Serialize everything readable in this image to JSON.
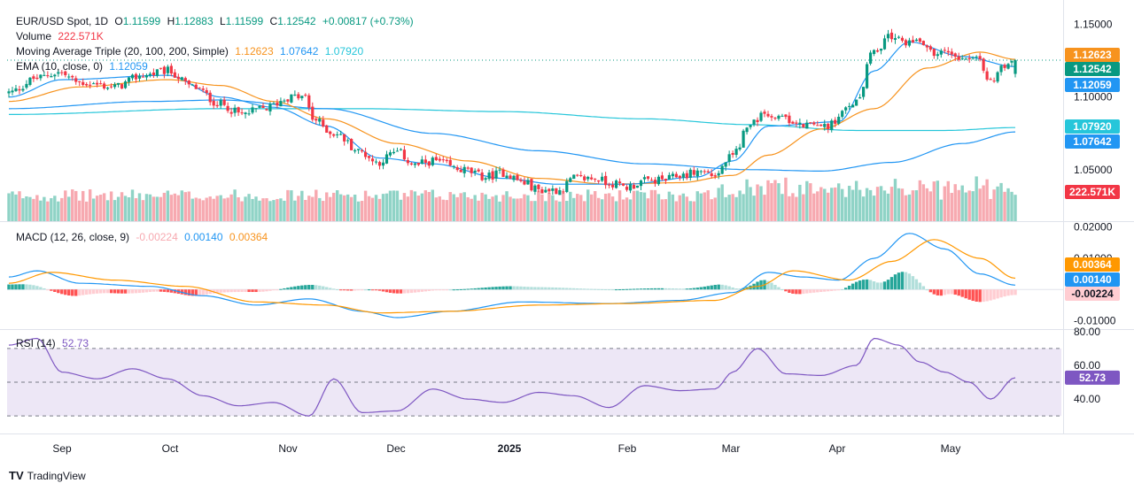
{
  "legend": {
    "symbol": "EUR/USD Spot, 1D",
    "o_label": "O",
    "o": "1.11599",
    "h_label": "H",
    "h": "1.12883",
    "l_label": "L",
    "l": "1.11599",
    "c_label": "C",
    "c": "1.12542",
    "change": "+0.00817 (+0.73%)",
    "volume_label": "Volume",
    "volume": "222.571K",
    "ma_label": "Moving Average Triple (20, 100, 200, Simple)",
    "ma20": "1.12623",
    "ma100": "1.07642",
    "ma200": "1.07920",
    "ema_label": "EMA (10, close, 0)",
    "ema": "1.12059",
    "macd_label": "MACD (12, 26, close, 9)",
    "macd_hist": "-0.00224",
    "macd_line": "0.00140",
    "macd_signal": "0.00364",
    "rsi_label": "RSI (14)",
    "rsi": "52.73"
  },
  "footer": {
    "brand": "TradingView"
  },
  "colors": {
    "up": "#089981",
    "down": "#f23645",
    "vol_up": "#8fd3c6",
    "vol_down": "#f7a9b0",
    "ma20": "#f7931e",
    "ma100": "#2196f3",
    "ma200": "#26c6da",
    "ema": "#2196f3",
    "macd": "#2196f3",
    "signal": "#ff9800",
    "rsi": "#7e57c2",
    "rsi_band": "#ede7f6"
  },
  "chart_data": [
    {
      "type": "candlestick",
      "title": "EUR/USD Spot, 1D",
      "x_ticks": [
        "Sep",
        "Oct",
        "Nov",
        "Dec",
        "2025",
        "Feb",
        "Mar",
        "Apr",
        "May"
      ],
      "y_ticks": [
        "1.05000",
        "1.10000",
        "1.15000"
      ],
      "ylim": [
        1.0145,
        1.1608
      ],
      "price_labels": [
        {
          "value": "1.12623",
          "y": 1.12623,
          "color": "#f7931e"
        },
        {
          "value": "1.12542",
          "y": 1.12542,
          "color": "#089981"
        },
        {
          "value": "1.12059",
          "y": 1.12059,
          "color": "#2196f3"
        },
        {
          "value": "1.07920",
          "y": 1.0792,
          "color": "#26c6da"
        },
        {
          "value": "1.07642",
          "y": 1.07642,
          "color": "#2196f3"
        },
        {
          "value": "222.571K",
          "y": 1.021,
          "color": "#f23645"
        }
      ],
      "price_anchors": [
        [
          0,
          1.103
        ],
        [
          8,
          1.113
        ],
        [
          14,
          1.117
        ],
        [
          20,
          1.11
        ],
        [
          30,
          1.107
        ],
        [
          38,
          1.115
        ],
        [
          45,
          1.118
        ],
        [
          52,
          1.107
        ],
        [
          60,
          1.095
        ],
        [
          66,
          1.088
        ],
        [
          72,
          1.092
        ],
        [
          80,
          1.1
        ],
        [
          84,
          1.1
        ],
        [
          86,
          1.085
        ],
        [
          92,
          1.075
        ],
        [
          100,
          1.062
        ],
        [
          104,
          1.055
        ],
        [
          110,
          1.062
        ],
        [
          115,
          1.053
        ],
        [
          120,
          1.056
        ],
        [
          128,
          1.05
        ],
        [
          135,
          1.045
        ],
        [
          140,
          1.048
        ],
        [
          146,
          1.041
        ],
        [
          150,
          1.036
        ],
        [
          156,
          1.036
        ],
        [
          160,
          1.044
        ],
        [
          166,
          1.044
        ],
        [
          170,
          1.041
        ],
        [
          175,
          1.038
        ],
        [
          180,
          1.042
        ],
        [
          186,
          1.043
        ],
        [
          190,
          1.046
        ],
        [
          196,
          1.049
        ],
        [
          200,
          1.046
        ],
        [
          205,
          1.06
        ],
        [
          210,
          1.082
        ],
        [
          215,
          1.089
        ],
        [
          222,
          1.083
        ],
        [
          228,
          1.08
        ],
        [
          233,
          1.081
        ],
        [
          236,
          1.089
        ],
        [
          240,
          1.098
        ],
        [
          245,
          1.132
        ],
        [
          250,
          1.142
        ],
        [
          254,
          1.138
        ],
        [
          258,
          1.14
        ],
        [
          262,
          1.13
        ],
        [
          266,
          1.131
        ],
        [
          270,
          1.128
        ],
        [
          274,
          1.127
        ],
        [
          278,
          1.11
        ],
        [
          282,
          1.123
        ],
        [
          285,
          1.125
        ]
      ],
      "ma20_anchors": [
        [
          0,
          1.097
        ],
        [
          20,
          1.107
        ],
        [
          45,
          1.112
        ],
        [
          60,
          1.108
        ],
        [
          75,
          1.097
        ],
        [
          90,
          1.085
        ],
        [
          110,
          1.068
        ],
        [
          130,
          1.056
        ],
        [
          150,
          1.044
        ],
        [
          170,
          1.04
        ],
        [
          190,
          1.041
        ],
        [
          205,
          1.046
        ],
        [
          215,
          1.06
        ],
        [
          230,
          1.078
        ],
        [
          245,
          1.092
        ],
        [
          260,
          1.12
        ],
        [
          275,
          1.131
        ],
        [
          285,
          1.126
        ]
      ],
      "ema_anchors": [
        [
          0,
          1.1
        ],
        [
          15,
          1.112
        ],
        [
          45,
          1.115
        ],
        [
          60,
          1.1
        ],
        [
          75,
          1.093
        ],
        [
          90,
          1.08
        ],
        [
          105,
          1.058
        ],
        [
          120,
          1.054
        ],
        [
          140,
          1.044
        ],
        [
          155,
          1.04
        ],
        [
          175,
          1.04
        ],
        [
          195,
          1.045
        ],
        [
          205,
          1.056
        ],
        [
          215,
          1.08
        ],
        [
          235,
          1.083
        ],
        [
          245,
          1.118
        ],
        [
          255,
          1.138
        ],
        [
          270,
          1.128
        ],
        [
          285,
          1.121
        ]
      ],
      "ma100_anchors": [
        [
          0,
          1.092
        ],
        [
          40,
          1.097
        ],
        [
          60,
          1.098
        ],
        [
          90,
          1.092
        ],
        [
          120,
          1.075
        ],
        [
          150,
          1.063
        ],
        [
          180,
          1.054
        ],
        [
          210,
          1.05
        ],
        [
          230,
          1.049
        ],
        [
          250,
          1.055
        ],
        [
          270,
          1.068
        ],
        [
          285,
          1.076
        ]
      ],
      "ma200_anchors": [
        [
          0,
          1.088
        ],
        [
          60,
          1.092
        ],
        [
          100,
          1.092
        ],
        [
          140,
          1.09
        ],
        [
          180,
          1.085
        ],
        [
          210,
          1.081
        ],
        [
          240,
          1.077
        ],
        [
          265,
          1.077
        ],
        [
          285,
          1.079
        ]
      ]
    },
    {
      "type": "histogram",
      "title": "Volume",
      "note": "volume bars overlaid at bottom of price pane"
    },
    {
      "type": "line",
      "title": "MACD (12, 26, close, 9)",
      "y_ticks": [
        "0.02000",
        "0.01000",
        "-0.01000"
      ],
      "ylim": [
        -0.0127,
        0.0219
      ],
      "series": [
        {
          "name": "MACD",
          "anchors": [
            [
              0,
              0.004
            ],
            [
              8,
              0.006
            ],
            [
              20,
              0.002
            ],
            [
              40,
              0.001
            ],
            [
              55,
              -0.002
            ],
            [
              70,
              -0.005
            ],
            [
              85,
              -0.003
            ],
            [
              100,
              -0.007
            ],
            [
              110,
              -0.009
            ],
            [
              125,
              -0.007
            ],
            [
              145,
              -0.004
            ],
            [
              170,
              -0.0045
            ],
            [
              190,
              -0.0035
            ],
            [
              205,
              -0.001
            ],
            [
              215,
              0.0055
            ],
            [
              225,
              0.004
            ],
            [
              235,
              0.003
            ],
            [
              245,
              0.01
            ],
            [
              255,
              0.018
            ],
            [
              265,
              0.013
            ],
            [
              275,
              0.005
            ],
            [
              285,
              0.0014
            ]
          ]
        },
        {
          "name": "Signal",
          "anchors": [
            [
              0,
              0.002
            ],
            [
              12,
              0.0055
            ],
            [
              30,
              0.003
            ],
            [
              50,
              0.001
            ],
            [
              70,
              -0.004
            ],
            [
              90,
              -0.005
            ],
            [
              105,
              -0.0075
            ],
            [
              125,
              -0.007
            ],
            [
              150,
              -0.005
            ],
            [
              175,
              -0.0045
            ],
            [
              200,
              -0.0035
            ],
            [
              212,
              0.001
            ],
            [
              222,
              0.006
            ],
            [
              238,
              0.003
            ],
            [
              250,
              0.009
            ],
            [
              262,
              0.016
            ],
            [
              275,
              0.01
            ],
            [
              285,
              0.0036
            ]
          ]
        }
      ]
    },
    {
      "type": "line",
      "title": "RSI (14)",
      "y_ticks": [
        "80.00",
        "60.00",
        "40.00"
      ],
      "ylim": [
        19.6,
        81.5
      ],
      "bands": [
        30,
        50,
        70
      ],
      "series": [
        {
          "name": "RSI",
          "anchors": [
            [
              0,
              72
            ],
            [
              8,
              76
            ],
            [
              15,
              56
            ],
            [
              25,
              52
            ],
            [
              35,
              58
            ],
            [
              45,
              52
            ],
            [
              55,
              42
            ],
            [
              65,
              36
            ],
            [
              75,
              38
            ],
            [
              85,
              30
            ],
            [
              92,
              52
            ],
            [
              100,
              32
            ],
            [
              110,
              33
            ],
            [
              120,
              46
            ],
            [
              130,
              40
            ],
            [
              140,
              38
            ],
            [
              150,
              44
            ],
            [
              160,
              42
            ],
            [
              170,
              35
            ],
            [
              180,
              48
            ],
            [
              190,
              45
            ],
            [
              200,
              46
            ],
            [
              205,
              56
            ],
            [
              212,
              70
            ],
            [
              220,
              55
            ],
            [
              230,
              54
            ],
            [
              240,
              60
            ],
            [
              245,
              76
            ],
            [
              252,
              72
            ],
            [
              258,
              62
            ],
            [
              265,
              56
            ],
            [
              272,
              50
            ],
            [
              278,
              40
            ],
            [
              285,
              52.7
            ]
          ]
        }
      ]
    }
  ]
}
